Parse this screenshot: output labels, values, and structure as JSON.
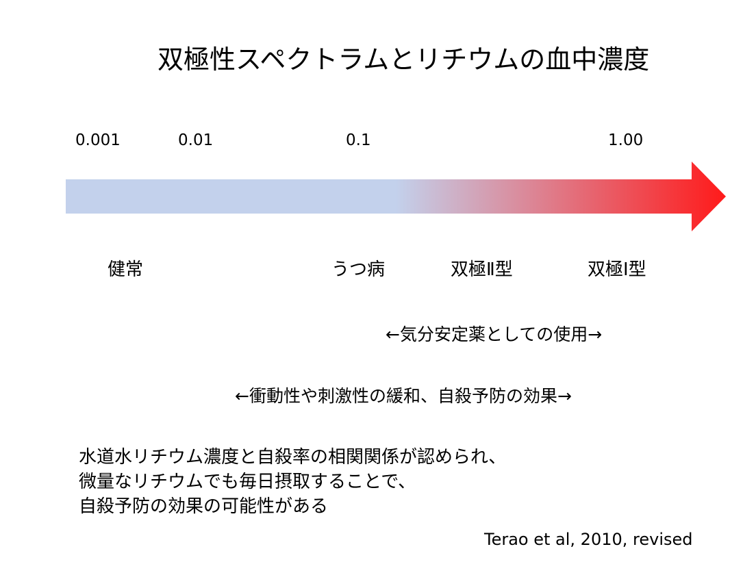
{
  "title": "双極性スペクトラムとリチウムの血中濃度",
  "scale": {
    "ticks": [
      "0.001",
      "0.01",
      "0.1",
      "1.00"
    ]
  },
  "arrow": {
    "start_color": "#c3d1ec",
    "end_color": "#ff1a1a"
  },
  "states": [
    "健常",
    "うつ病",
    "双極Ⅱ型",
    "双極Ⅰ型"
  ],
  "ranges": {
    "mood_stabilizer": "←気分安定薬としての使用→",
    "impulsivity": "←衝動性や刺激性の緩和、自殺予防の効果→"
  },
  "note": {
    "lines": [
      "水道水リチウム濃度と自殺率の相関関係が認められ、",
      "微量なリチウムでも毎日摂取することで、",
      "自殺予防の効果の可能性がある"
    ]
  },
  "citation": "Terao et al, 2010, revised"
}
